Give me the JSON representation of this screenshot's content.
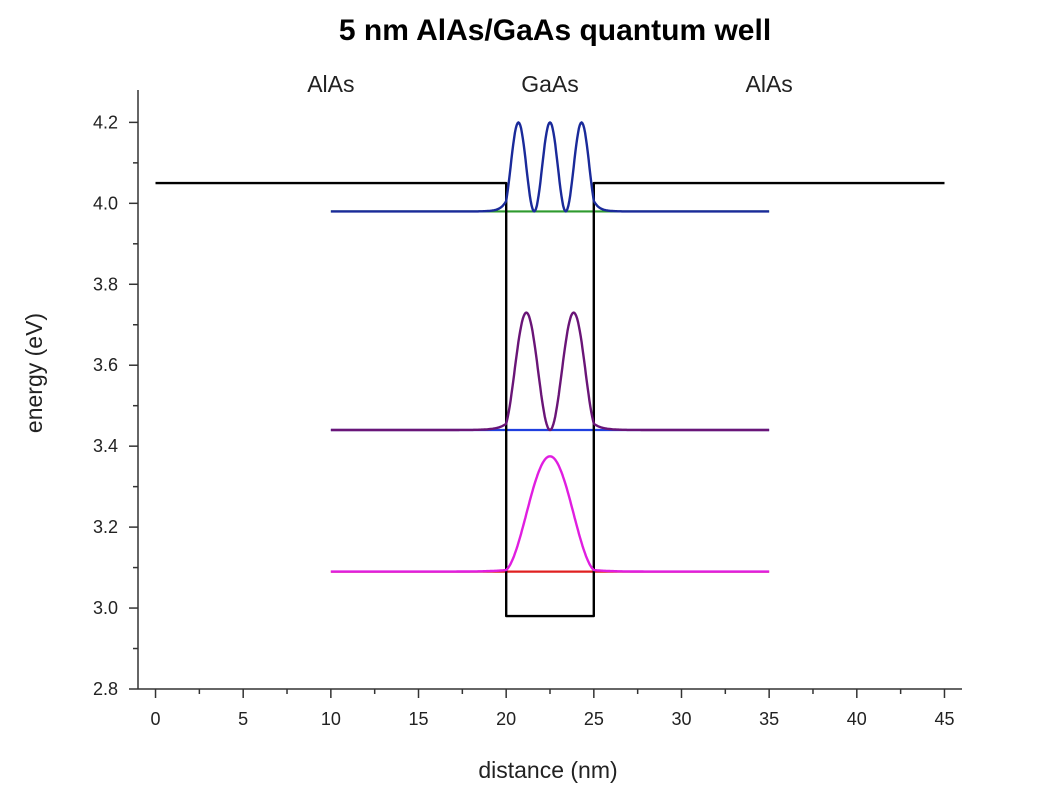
{
  "chart_data": {
    "type": "line",
    "title": "5 nm AlAs/GaAs quantum well",
    "xlabel": "distance (nm)",
    "ylabel": "energy (eV)",
    "xlim": [
      -1,
      46
    ],
    "ylim": [
      2.8,
      4.28
    ],
    "x_ticks": [
      0,
      5,
      10,
      15,
      20,
      25,
      30,
      35,
      40,
      45
    ],
    "x_tick_labels": [
      "0",
      "5",
      "10",
      "15",
      "20",
      "25",
      "30",
      "35",
      "40",
      "45"
    ],
    "y_ticks": [
      2.8,
      3.0,
      3.2,
      3.4,
      3.6,
      3.8,
      4.0,
      4.2
    ],
    "y_tick_labels": [
      "2.8",
      "3.0",
      "3.2",
      "3.4",
      "3.6",
      "3.8",
      "4.0",
      "4.2"
    ],
    "grid": false,
    "legend": "none",
    "region_labels": [
      {
        "text": "AlAs",
        "x": 10
      },
      {
        "text": "GaAs",
        "x": 22.5
      },
      {
        "text": "AlAs",
        "x": 35
      }
    ],
    "potential": {
      "color": "#000000",
      "barrier_energy": 4.05,
      "well_bottom": 2.98,
      "well_left": 20,
      "well_right": 25,
      "x_start": 0,
      "x_end": 45
    },
    "states": [
      {
        "energy": 3.09,
        "level_color": "#e02020",
        "wave_color": "#e01ee0",
        "n": 1,
        "amplitude": 0.285,
        "x_range": [
          10,
          35
        ]
      },
      {
        "energy": 3.44,
        "level_color": "#1f3fdf",
        "wave_color": "#6a1577",
        "n": 2,
        "amplitude": 0.29,
        "x_range": [
          10,
          35
        ]
      },
      {
        "energy": 3.98,
        "level_color": "#2e9a2e",
        "wave_color": "#1a2a9a",
        "n": 3,
        "amplitude": 0.22,
        "x_range": [
          10,
          35
        ]
      }
    ]
  }
}
